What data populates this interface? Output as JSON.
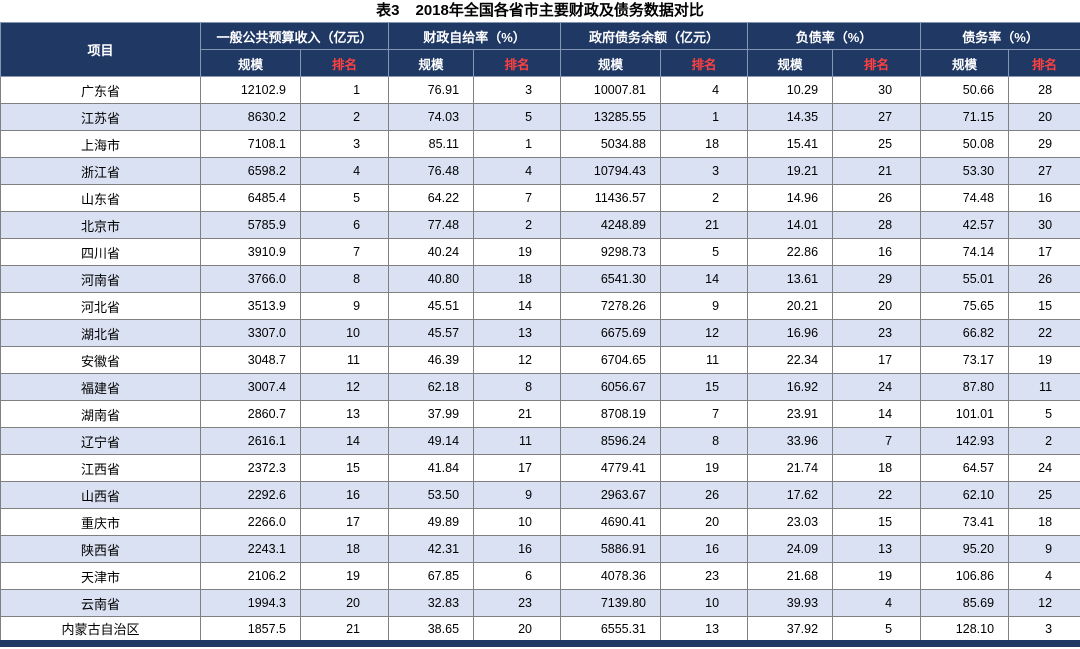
{
  "title": {
    "label": "表3",
    "caption": "2018年全国各省市主要财政及债务数据对比"
  },
  "table": {
    "corner_header": "项目",
    "groups": [
      {
        "label": "一般公共预算收入（亿元）"
      },
      {
        "label": "财政自给率（%）"
      },
      {
        "label": "政府债务余额（亿元）"
      },
      {
        "label": "负债率（%）"
      },
      {
        "label": "债务率（%）"
      }
    ],
    "sub_headers": {
      "scale": "规模",
      "rank": "排名"
    },
    "rows": [
      {
        "name": "广东省",
        "values": [
          "12102.9",
          "1",
          "76.91",
          "3",
          "10007.81",
          "4",
          "10.29",
          "30",
          "50.66",
          "28"
        ]
      },
      {
        "name": "江苏省",
        "values": [
          "8630.2",
          "2",
          "74.03",
          "5",
          "13285.55",
          "1",
          "14.35",
          "27",
          "71.15",
          "20"
        ]
      },
      {
        "name": "上海市",
        "values": [
          "7108.1",
          "3",
          "85.11",
          "1",
          "5034.88",
          "18",
          "15.41",
          "25",
          "50.08",
          "29"
        ]
      },
      {
        "name": "浙江省",
        "values": [
          "6598.2",
          "4",
          "76.48",
          "4",
          "10794.43",
          "3",
          "19.21",
          "21",
          "53.30",
          "27"
        ]
      },
      {
        "name": "山东省",
        "values": [
          "6485.4",
          "5",
          "64.22",
          "7",
          "11436.57",
          "2",
          "14.96",
          "26",
          "74.48",
          "16"
        ]
      },
      {
        "name": "北京市",
        "values": [
          "5785.9",
          "6",
          "77.48",
          "2",
          "4248.89",
          "21",
          "14.01",
          "28",
          "42.57",
          "30"
        ]
      },
      {
        "name": "四川省",
        "values": [
          "3910.9",
          "7",
          "40.24",
          "19",
          "9298.73",
          "5",
          "22.86",
          "16",
          "74.14",
          "17"
        ]
      },
      {
        "name": "河南省",
        "values": [
          "3766.0",
          "8",
          "40.80",
          "18",
          "6541.30",
          "14",
          "13.61",
          "29",
          "55.01",
          "26"
        ]
      },
      {
        "name": "河北省",
        "values": [
          "3513.9",
          "9",
          "45.51",
          "14",
          "7278.26",
          "9",
          "20.21",
          "20",
          "75.65",
          "15"
        ]
      },
      {
        "name": "湖北省",
        "values": [
          "3307.0",
          "10",
          "45.57",
          "13",
          "6675.69",
          "12",
          "16.96",
          "23",
          "66.82",
          "22"
        ]
      },
      {
        "name": "安徽省",
        "values": [
          "3048.7",
          "11",
          "46.39",
          "12",
          "6704.65",
          "11",
          "22.34",
          "17",
          "73.17",
          "19"
        ]
      },
      {
        "name": "福建省",
        "values": [
          "3007.4",
          "12",
          "62.18",
          "8",
          "6056.67",
          "15",
          "16.92",
          "24",
          "87.80",
          "11"
        ]
      },
      {
        "name": "湖南省",
        "values": [
          "2860.7",
          "13",
          "37.99",
          "21",
          "8708.19",
          "7",
          "23.91",
          "14",
          "101.01",
          "5"
        ]
      },
      {
        "name": "辽宁省",
        "values": [
          "2616.1",
          "14",
          "49.14",
          "11",
          "8596.24",
          "8",
          "33.96",
          "7",
          "142.93",
          "2"
        ]
      },
      {
        "name": "江西省",
        "values": [
          "2372.3",
          "15",
          "41.84",
          "17",
          "4779.41",
          "19",
          "21.74",
          "18",
          "64.57",
          "24"
        ]
      },
      {
        "name": "山西省",
        "values": [
          "2292.6",
          "16",
          "53.50",
          "9",
          "2963.67",
          "26",
          "17.62",
          "22",
          "62.10",
          "25"
        ]
      },
      {
        "name": "重庆市",
        "values": [
          "2266.0",
          "17",
          "49.89",
          "10",
          "4690.41",
          "20",
          "23.03",
          "15",
          "73.41",
          "18"
        ]
      },
      {
        "name": "陕西省",
        "values": [
          "2243.1",
          "18",
          "42.31",
          "16",
          "5886.91",
          "16",
          "24.09",
          "13",
          "95.20",
          "9"
        ]
      },
      {
        "name": "天津市",
        "values": [
          "2106.2",
          "19",
          "67.85",
          "6",
          "4078.36",
          "23",
          "21.68",
          "19",
          "106.86",
          "4"
        ]
      },
      {
        "name": "云南省",
        "values": [
          "1994.3",
          "20",
          "32.83",
          "23",
          "7139.80",
          "10",
          "39.93",
          "4",
          "85.69",
          "12"
        ]
      },
      {
        "name": "内蒙古自治区",
        "values": [
          "1857.5",
          "21",
          "38.65",
          "20",
          "6555.31",
          "13",
          "37.92",
          "5",
          "128.10",
          "3"
        ]
      }
    ]
  },
  "colors": {
    "header_bg": "#1F3864",
    "header_text": "#FFFFFF",
    "header_border": "#8496B0",
    "rank_color": "#FF4040",
    "alt_row_bg": "#D9E1F2",
    "border_color": "#808080"
  }
}
